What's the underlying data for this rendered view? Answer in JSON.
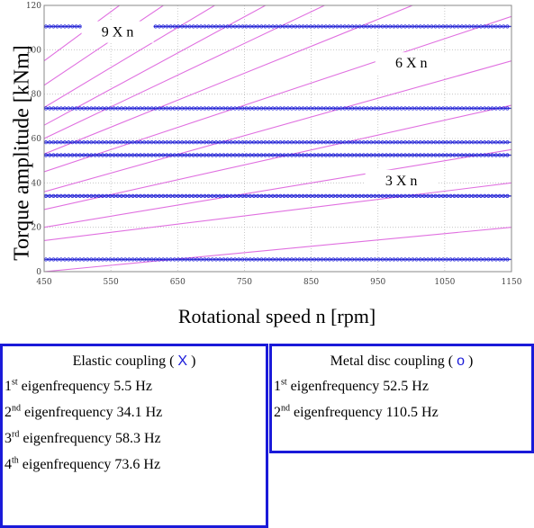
{
  "chart_data": {
    "type": "line",
    "xlabel": "Rotational speed n [rpm]",
    "ylabel": "Torque amplitude [kNm]",
    "xlim": [
      450,
      1150
    ],
    "ylim": [
      0,
      120
    ],
    "xticks": [
      "450",
      "550",
      "650",
      "750",
      "850",
      "950",
      "1050",
      "1150"
    ],
    "yticks": [
      "0",
      "20",
      "40",
      "60",
      "80",
      "100",
      "120"
    ],
    "grid": true,
    "horizontal_lines": [
      5.5,
      34.1,
      52.5,
      58.3,
      73.6,
      110.5
    ],
    "order_lines": [
      {
        "y_start": 0,
        "y_end": 20
      },
      {
        "y_start": 14,
        "y_end": 40
      },
      {
        "y_start": 20,
        "y_end": 55
      },
      {
        "y_start": 28,
        "y_end": 75
      },
      {
        "y_start": 36,
        "y_end": 95
      },
      {
        "y_start": 45,
        "y_end": 115
      },
      {
        "y_start": 53,
        "y_end": 138
      },
      {
        "y_start": 60,
        "y_end": 160
      },
      {
        "y_start": 66,
        "y_end": 180
      },
      {
        "y_start": 74,
        "y_end": 200
      },
      {
        "y_start": 84,
        "y_end": 225
      },
      {
        "y_start": 95,
        "y_end": 250
      }
    ],
    "annotations": [
      {
        "text": "9 X n",
        "x": 560,
        "y": 108
      },
      {
        "text": "6 X n",
        "x": 1000,
        "y": 94
      },
      {
        "text": "3 X n",
        "x": 985,
        "y": 41
      }
    ],
    "colors": {
      "order_line": "#e070e0",
      "frequency_line": "#3a3ad0",
      "marker": "#1a1ad9"
    }
  },
  "legend": {
    "elastic": {
      "title": "Elastic coupling (",
      "symbol": "X",
      "title_end": ")",
      "rows": [
        {
          "ord": "1",
          "sup": "st",
          "text": " eigenfrequency 5.5 Hz"
        },
        {
          "ord": "2",
          "sup": "nd",
          "text": " eigenfrequency 34.1 Hz"
        },
        {
          "ord": "3",
          "sup": "rd",
          "text": " eigenfrequency 58.3 Hz"
        },
        {
          "ord": "4",
          "sup": "th",
          "text": " eigenfrequency 73.6 Hz"
        }
      ]
    },
    "metal": {
      "title": "Metal disc coupling (",
      "symbol": "o",
      "title_end": ")",
      "rows": [
        {
          "ord": "1",
          "sup": "st",
          "text": " eigenfrequency 52.5 Hz"
        },
        {
          "ord": "2",
          "sup": "nd",
          "text": " eigenfrequency 110.5 Hz"
        }
      ]
    }
  }
}
